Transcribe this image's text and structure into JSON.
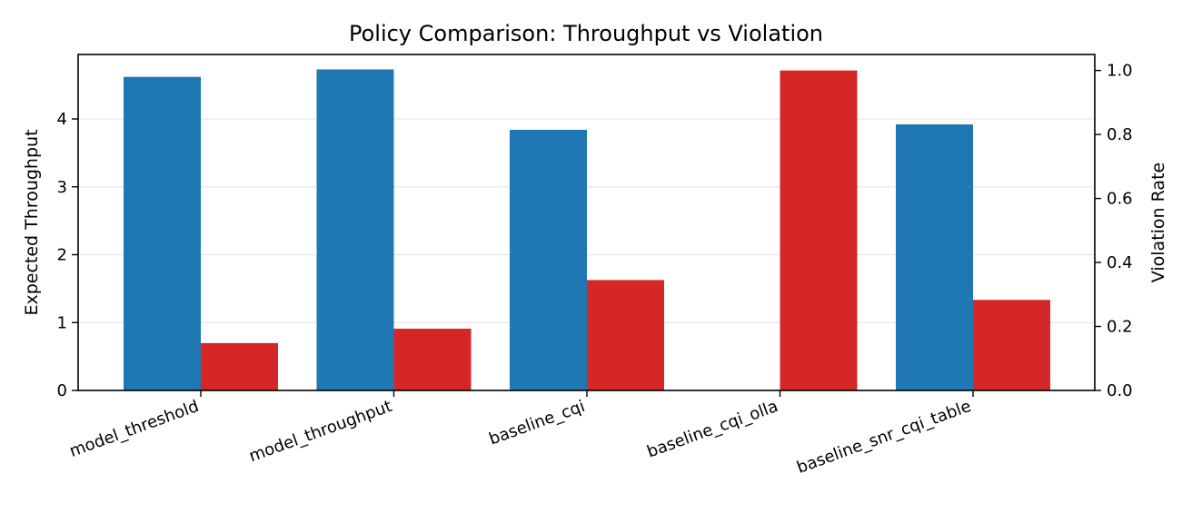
{
  "chart_data": {
    "type": "bar",
    "title": "Policy Comparison: Throughput vs Violation",
    "categories": [
      "model_threshold",
      "model_throughput",
      "baseline_cqi",
      "baseline_cqi_olla",
      "baseline_snr_cqi_table"
    ],
    "series": [
      {
        "axis": "left",
        "color": "#1f77b4",
        "values": [
          4.62,
          4.73,
          3.84,
          0.0,
          3.92
        ]
      },
      {
        "axis": "right",
        "color": "#d62728",
        "values": [
          0.148,
          0.193,
          0.345,
          1.0,
          0.283
        ]
      }
    ],
    "ylabel": "Expected Throughput",
    "y2label": "Violation Rate",
    "ylim": [
      0,
      4.95
    ],
    "y2lim": [
      0,
      1.05
    ],
    "yticks": [
      0,
      1,
      2,
      3,
      4
    ],
    "y2ticks": [
      "0.0",
      "0.2",
      "0.4",
      "0.6",
      "0.8",
      "1.0"
    ],
    "grid": "horizontal",
    "legend": "none"
  }
}
